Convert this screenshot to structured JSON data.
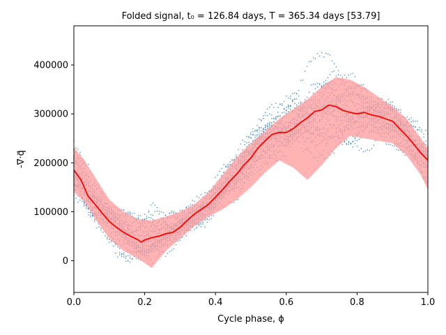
{
  "chart_data": {
    "type": "line",
    "title": "Folded signal, t₀ = 126.84 days, T = 365.34 days [53.79]",
    "xlabel": "Cycle phase, ϕ",
    "ylabel": "-∇⃗·q⃗",
    "xlim": [
      0,
      1
    ],
    "ylim": [
      -65000,
      480000
    ],
    "x_ticks": [
      0.0,
      0.2,
      0.4,
      0.6,
      0.8,
      1.0
    ],
    "x_tick_labels": [
      "0.0",
      "0.2",
      "0.4",
      "0.6",
      "0.8",
      "1.0"
    ],
    "y_ticks": [
      0,
      100000,
      200000,
      300000,
      400000
    ],
    "y_tick_labels": [
      "0",
      "100000",
      "200000",
      "300000",
      "400000"
    ],
    "grid": false,
    "colors": {
      "mean_line": "#ff0000",
      "band": "#ff9999",
      "scatter": "#1f77b4"
    },
    "series": [
      {
        "kind": "mean-line",
        "x": [
          0.0,
          0.02,
          0.04,
          0.06,
          0.08,
          0.1,
          0.12,
          0.14,
          0.16,
          0.18,
          0.19,
          0.2,
          0.22,
          0.24,
          0.26,
          0.28,
          0.3,
          0.32,
          0.34,
          0.36,
          0.38,
          0.4,
          0.42,
          0.44,
          0.46,
          0.48,
          0.5,
          0.52,
          0.54,
          0.56,
          0.58,
          0.6,
          0.62,
          0.64,
          0.66,
          0.68,
          0.7,
          0.72,
          0.74,
          0.76,
          0.78,
          0.8,
          0.82,
          0.84,
          0.86,
          0.88,
          0.9,
          0.92,
          0.94,
          0.96,
          0.98,
          1.0
        ],
        "y": [
          185000,
          165000,
          132000,
          115000,
          97000,
          80000,
          68000,
          58000,
          50000,
          43000,
          38000,
          42000,
          47000,
          50000,
          55000,
          58000,
          68000,
          82000,
          95000,
          105000,
          115000,
          130000,
          145000,
          162000,
          177000,
          195000,
          210000,
          230000,
          245000,
          258000,
          262000,
          262000,
          270000,
          282000,
          292000,
          305000,
          308000,
          318000,
          315000,
          307000,
          303000,
          300000,
          303000,
          298000,
          295000,
          290000,
          285000,
          270000,
          255000,
          238000,
          220000,
          205000
        ]
      },
      {
        "kind": "band-upper",
        "x": [
          0.0,
          0.03,
          0.06,
          0.1,
          0.14,
          0.18,
          0.22,
          0.26,
          0.3,
          0.34,
          0.38,
          0.42,
          0.46,
          0.5,
          0.54,
          0.58,
          0.62,
          0.66,
          0.7,
          0.74,
          0.78,
          0.82,
          0.86,
          0.9,
          0.94,
          0.98,
          1.0
        ],
        "y": [
          232000,
          205000,
          170000,
          125000,
          100000,
          85000,
          82000,
          90000,
          100000,
          115000,
          140000,
          175000,
          212000,
          240000,
          265000,
          290000,
          310000,
          330000,
          355000,
          375000,
          370000,
          355000,
          335000,
          315000,
          290000,
          250000,
          230000
        ]
      },
      {
        "kind": "band-lower",
        "x": [
          0.0,
          0.03,
          0.06,
          0.1,
          0.14,
          0.18,
          0.22,
          0.26,
          0.3,
          0.34,
          0.38,
          0.42,
          0.46,
          0.5,
          0.54,
          0.58,
          0.62,
          0.66,
          0.7,
          0.74,
          0.78,
          0.82,
          0.86,
          0.9,
          0.94,
          0.98,
          1.0
        ],
        "y": [
          140000,
          120000,
          85000,
          45000,
          20000,
          5000,
          -15000,
          20000,
          45000,
          70000,
          90000,
          105000,
          125000,
          150000,
          180000,
          205000,
          190000,
          165000,
          195000,
          230000,
          255000,
          250000,
          245000,
          240000,
          215000,
          175000,
          145000
        ]
      }
    ]
  }
}
